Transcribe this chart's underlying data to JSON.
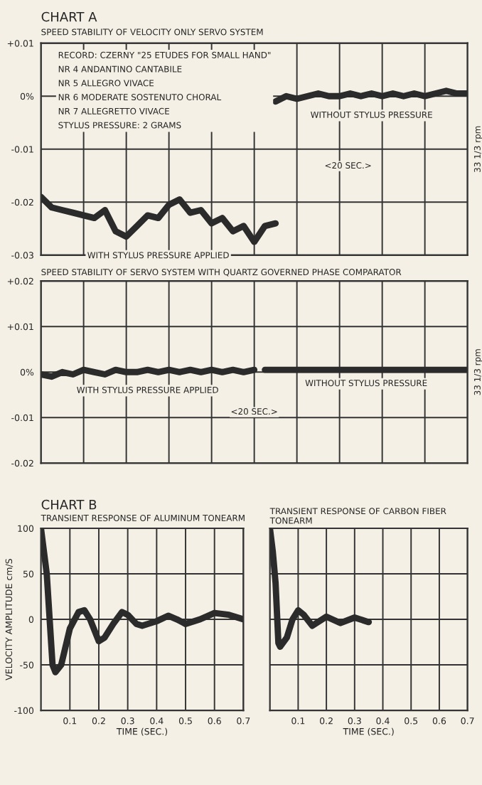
{
  "chart_data": [
    {
      "type": "line",
      "title": "CHART A",
      "subtitle": "SPEED STABILITY OF VELOCITY ONLY SERVO SYSTEM",
      "categories": [
        null,
        null,
        null,
        null,
        null,
        null,
        null,
        null,
        null,
        null,
        null,
        null,
        null,
        null,
        null,
        null,
        null,
        null,
        null,
        null,
        null,
        null,
        null,
        null,
        null,
        null,
        null,
        null,
        null,
        null,
        null,
        null,
        null,
        null,
        null,
        null,
        null,
        null,
        null,
        null,
        null
      ],
      "series": [
        {
          "name": "WITH STYLUS PRESSURE APPLIED",
          "color": "#2b2b2b",
          "values": [
            -0.019,
            -0.021,
            -0.0215,
            -0.022,
            -0.0225,
            -0.023,
            -0.0215,
            -0.0255,
            -0.0265,
            -0.0245,
            -0.0225,
            -0.023,
            -0.0205,
            -0.0195,
            -0.022,
            -0.0215,
            -0.024,
            -0.023,
            -0.0255,
            -0.0245,
            -0.0275,
            -0.0245,
            -0.024,
            null,
            null,
            null,
            null,
            null,
            null,
            null,
            null,
            null,
            null,
            null,
            null,
            null,
            null,
            null,
            null,
            null,
            null
          ]
        },
        {
          "name": "WITHOUT STYLUS PRESSURE",
          "color": "#2b2b2b",
          "values": [
            null,
            null,
            null,
            null,
            null,
            null,
            null,
            null,
            null,
            null,
            null,
            null,
            null,
            null,
            null,
            null,
            null,
            null,
            null,
            null,
            null,
            null,
            -0.001,
            0.0,
            -0.0005,
            0.0,
            0.0005,
            0.0,
            0.0,
            0.0005,
            0.0,
            0.0005,
            0.0,
            0.0005,
            0.0,
            0.0005,
            0.0,
            0.0005,
            0.001,
            0.0005,
            0.0005
          ]
        }
      ],
      "ylim": [
        -0.03,
        0.01
      ],
      "yticks": [
        {
          "value": 0.01,
          "label": "+0.01"
        },
        {
          "value": 0,
          "label": "0%"
        },
        {
          "value": -0.01,
          "label": "-0.01"
        },
        {
          "value": -0.02,
          "label": "-0.02"
        },
        {
          "value": -0.03,
          "label": "-0.03"
        }
      ],
      "grid": true,
      "line_style": "solid",
      "marker": "none",
      "annotations": [
        "RECORD: CZERNY \"25 ETUDES FOR SMALL HAND\"\nNR 4 ANDANTINO CANTABILE\nNR 5 ALLEGRO VIVACE\nNR 6 MODERATE SOSTENUTO CHORAL\nNR 7 ALLEGRETTO VIVACE\nSTYLUS PRESSURE: 2 GRAMS",
        "<20 SEC.>",
        "33 1/3 rpm"
      ]
    },
    {
      "type": "line",
      "title": "SPEED STABILITY OF SERVO SYSTEM WITH QUARTZ GOVERNED PHASE COMPARATOR",
      "categories": [
        null,
        null,
        null,
        null,
        null,
        null,
        null,
        null,
        null,
        null,
        null,
        null,
        null,
        null,
        null,
        null,
        null,
        null,
        null,
        null,
        null,
        null,
        null,
        null,
        null,
        null,
        null,
        null,
        null,
        null,
        null,
        null,
        null,
        null,
        null,
        null,
        null,
        null,
        null,
        null,
        null
      ],
      "series": [
        {
          "name": "WITH STYLUS PRESSURE APPLIED",
          "color": "#2b2b2b",
          "values": [
            -0.0005,
            -0.001,
            0.0,
            -0.0005,
            0.0005,
            0.0,
            -0.0005,
            0.0005,
            0.0,
            0.0,
            0.0005,
            0.0,
            0.0005,
            0.0,
            0.0005,
            0.0,
            0.0005,
            0.0,
            0.0005,
            0.0,
            0.0005,
            null,
            null,
            null,
            null,
            null,
            null,
            null,
            null,
            null,
            null,
            null,
            null,
            null,
            null,
            null,
            null,
            null,
            null,
            null,
            null
          ]
        },
        {
          "name": "WITHOUT STYLUS PRESSURE",
          "color": "#2b2b2b",
          "values": [
            null,
            null,
            null,
            null,
            null,
            null,
            null,
            null,
            null,
            null,
            null,
            null,
            null,
            null,
            null,
            null,
            null,
            null,
            null,
            null,
            null,
            0.0005,
            0.0005,
            0.0005,
            0.0005,
            0.0005,
            0.0005,
            0.0005,
            0.0005,
            0.0005,
            0.0005,
            0.0005,
            0.0005,
            0.0005,
            0.0005,
            0.0005,
            0.0005,
            0.0005,
            0.0005,
            0.0005,
            0.0005
          ]
        }
      ],
      "ylim": [
        -0.02,
        0.02
      ],
      "yticks": [
        {
          "value": 0.02,
          "label": "+0.02"
        },
        {
          "value": 0.01,
          "label": "+0.01"
        },
        {
          "value": 0,
          "label": "0%"
        },
        {
          "value": -0.01,
          "label": "-0.01"
        },
        {
          "value": -0.02,
          "label": "-0.02"
        }
      ],
      "grid": true,
      "line_style": "solid",
      "marker": "none",
      "annotations": [
        "<20 SEC.>",
        "33 1/3 rpm"
      ]
    },
    {
      "type": "line",
      "title": "CHART B",
      "subtitle": "TRANSIENT RESPONSE OF ALUMINUM TONEARM",
      "xlabel": "TIME (SEC.)",
      "ylabel": "VELOCITY AMPLITUDE cm/S",
      "series": [
        {
          "color": "#2b2b2b",
          "x": [
            0,
            0.02,
            0.04,
            0.05,
            0.07,
            0.1,
            0.13,
            0.15,
            0.17,
            0.2,
            0.22,
            0.25,
            0.28,
            0.3,
            0.33,
            0.35,
            0.4,
            0.44,
            0.47,
            0.5,
            0.55,
            0.6,
            0.65,
            0.7
          ],
          "values": [
            100,
            50,
            -50,
            -58,
            -50,
            -10,
            8,
            10,
            0,
            -24,
            -20,
            -5,
            8,
            5,
            -5,
            -7,
            -2,
            4,
            0,
            -5,
            0,
            7,
            5,
            0
          ]
        }
      ],
      "xlim": [
        0,
        0.7
      ],
      "xticks": [
        0.1,
        0.2,
        0.3,
        0.4,
        0.5,
        0.6,
        0.7
      ],
      "ylim": [
        -100,
        100
      ],
      "yticks": [
        100,
        50,
        0,
        -50,
        -100
      ],
      "grid": true,
      "line_style": "solid",
      "marker": "none"
    },
    {
      "type": "line",
      "title": "TRANSIENT RESPONSE OF CARBON FIBER TONEARM",
      "xlabel": "TIME (SEC.)",
      "series": [
        {
          "color": "#2b2b2b",
          "x": [
            0,
            0.01,
            0.02,
            0.03,
            0.036,
            0.06,
            0.08,
            0.1,
            0.12,
            0.15,
            0.2,
            0.25,
            0.3,
            0.35
          ],
          "values": [
            100,
            75,
            40,
            -26,
            -30,
            -20,
            0,
            10,
            5,
            -7,
            3,
            -4,
            2,
            -3
          ]
        }
      ],
      "xlim": [
        0,
        0.7
      ],
      "xticks": [
        0.1,
        0.2,
        0.3,
        0.4,
        0.5,
        0.6,
        0.7
      ],
      "ylim": [
        -100,
        100
      ],
      "yticks": [
        100,
        50,
        0,
        -50,
        -100
      ],
      "tick_labels": "x",
      "grid": true,
      "line_style": "solid",
      "marker": "none"
    }
  ]
}
